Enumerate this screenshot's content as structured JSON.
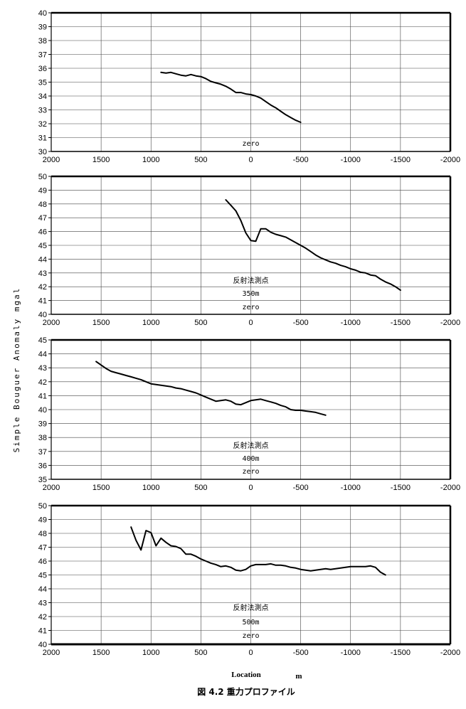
{
  "figure": {
    "ylabel": "Simple  Bouguer  Anomaly    mgal",
    "xlabel": "Location",
    "xunit": "m",
    "caption": "図 4.2  重力プロファイル"
  },
  "chart_data": [
    {
      "type": "line",
      "xlim": [
        2000,
        -2000
      ],
      "ylim": [
        30,
        40
      ],
      "x_ticks": [
        2000,
        1500,
        1000,
        500,
        0,
        -500,
        -1000,
        -1500,
        -2000
      ],
      "y_ticks": [
        30,
        31,
        32,
        33,
        34,
        35,
        36,
        37,
        38,
        39,
        40
      ],
      "grid": true,
      "annotations": [
        "zero"
      ],
      "x": [
        900,
        850,
        800,
        750,
        700,
        650,
        600,
        550,
        500,
        450,
        400,
        350,
        300,
        250,
        200,
        150,
        100,
        50,
        0,
        -50,
        -100,
        -150,
        -200,
        -250,
        -300,
        -350,
        -400,
        -450,
        -500
      ],
      "values": [
        35.7,
        35.65,
        35.7,
        35.6,
        35.5,
        35.45,
        35.55,
        35.45,
        35.4,
        35.25,
        35.05,
        34.95,
        34.85,
        34.7,
        34.5,
        34.25,
        34.25,
        34.15,
        34.1,
        34.0,
        33.85,
        33.6,
        33.35,
        33.15,
        32.9,
        32.65,
        32.45,
        32.25,
        32.1
      ]
    },
    {
      "type": "line",
      "xlim": [
        2000,
        -2000
      ],
      "ylim": [
        40,
        50
      ],
      "x_ticks": [
        2000,
        1500,
        1000,
        500,
        0,
        -500,
        -1000,
        -1500,
        -2000
      ],
      "y_ticks": [
        40,
        41,
        42,
        43,
        44,
        45,
        46,
        47,
        48,
        49,
        50
      ],
      "grid": true,
      "annotations": [
        "反射法測点",
        "350m",
        "zero"
      ],
      "x": [
        250,
        200,
        150,
        100,
        50,
        0,
        -50,
        -100,
        -150,
        -200,
        -250,
        -300,
        -350,
        -400,
        -450,
        -500,
        -550,
        -600,
        -650,
        -700,
        -750,
        -800,
        -850,
        -900,
        -950,
        -1000,
        -1050,
        -1100,
        -1150,
        -1200,
        -1250,
        -1300,
        -1350,
        -1400,
        -1450,
        -1500
      ],
      "values": [
        48.3,
        47.9,
        47.5,
        46.8,
        45.9,
        45.35,
        45.3,
        46.2,
        46.2,
        45.95,
        45.8,
        45.7,
        45.6,
        45.4,
        45.2,
        45.0,
        44.8,
        44.55,
        44.3,
        44.1,
        43.95,
        43.8,
        43.7,
        43.55,
        43.45,
        43.3,
        43.2,
        43.05,
        43.0,
        42.85,
        42.8,
        42.55,
        42.35,
        42.2,
        42.0,
        41.75
      ]
    },
    {
      "type": "line",
      "xlim": [
        2000,
        -2000
      ],
      "ylim": [
        35,
        45
      ],
      "x_ticks": [
        2000,
        1500,
        1000,
        500,
        0,
        -500,
        -1000,
        -1500,
        -2000
      ],
      "y_ticks": [
        35,
        36,
        37,
        38,
        39,
        40,
        41,
        42,
        43,
        44,
        45
      ],
      "grid": true,
      "annotations": [
        "反射法測点",
        "400m",
        "zero"
      ],
      "x": [
        1550,
        1500,
        1450,
        1400,
        1350,
        1300,
        1250,
        1200,
        1150,
        1100,
        1050,
        1000,
        950,
        900,
        850,
        800,
        750,
        700,
        650,
        600,
        550,
        500,
        450,
        400,
        350,
        300,
        250,
        200,
        150,
        100,
        50,
        0,
        -50,
        -100,
        -150,
        -200,
        -250,
        -300,
        -350,
        -400,
        -450,
        -500,
        -550,
        -600,
        -650,
        -700,
        -750
      ],
      "values": [
        43.45,
        43.2,
        42.95,
        42.75,
        42.65,
        42.55,
        42.45,
        42.35,
        42.25,
        42.15,
        42.0,
        41.85,
        41.8,
        41.75,
        41.7,
        41.65,
        41.55,
        41.5,
        41.4,
        41.3,
        41.2,
        41.05,
        40.9,
        40.75,
        40.6,
        40.65,
        40.7,
        40.6,
        40.4,
        40.35,
        40.5,
        40.65,
        40.7,
        40.75,
        40.65,
        40.55,
        40.45,
        40.3,
        40.2,
        40.0,
        39.95,
        39.95,
        39.9,
        39.85,
        39.8,
        39.7,
        39.6
      ]
    },
    {
      "type": "line",
      "xlim": [
        2000,
        -2000
      ],
      "ylim": [
        40,
        50
      ],
      "x_ticks": [
        2000,
        1500,
        1000,
        500,
        0,
        -500,
        -1000,
        -1500,
        -2000
      ],
      "y_ticks": [
        40,
        41,
        42,
        43,
        44,
        45,
        46,
        47,
        48,
        49,
        50
      ],
      "grid": true,
      "annotations": [
        "反射法測点",
        "500m",
        "zero"
      ],
      "x": [
        1200,
        1150,
        1100,
        1050,
        1000,
        950,
        900,
        850,
        800,
        750,
        700,
        650,
        600,
        550,
        500,
        450,
        400,
        350,
        300,
        250,
        200,
        150,
        100,
        50,
        0,
        -50,
        -100,
        -150,
        -200,
        -250,
        -300,
        -350,
        -400,
        -450,
        -500,
        -550,
        -600,
        -650,
        -700,
        -750,
        -800,
        -850,
        -900,
        -950,
        -1000,
        -1050,
        -1100,
        -1150,
        -1200,
        -1250,
        -1300,
        -1350
      ],
      "values": [
        48.45,
        47.5,
        46.8,
        48.2,
        48.05,
        47.1,
        47.65,
        47.35,
        47.1,
        47.05,
        46.9,
        46.5,
        46.5,
        46.35,
        46.15,
        46.0,
        45.85,
        45.75,
        45.6,
        45.65,
        45.55,
        45.35,
        45.3,
        45.4,
        45.65,
        45.75,
        45.75,
        45.75,
        45.8,
        45.7,
        45.7,
        45.65,
        45.55,
        45.5,
        45.4,
        45.35,
        45.3,
        45.35,
        45.4,
        45.45,
        45.4,
        45.45,
        45.5,
        45.55,
        45.6,
        45.6,
        45.6,
        45.6,
        45.65,
        45.55,
        45.2,
        45.0
      ]
    }
  ]
}
